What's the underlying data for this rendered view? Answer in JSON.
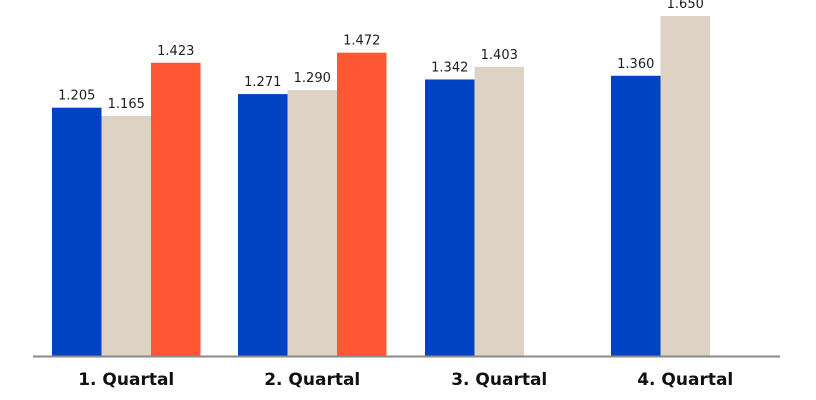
{
  "chart_data": {
    "type": "bar",
    "title": "",
    "xlabel": "",
    "ylabel": "",
    "categories": [
      "1. Quartal",
      "2. Quartal",
      "3. Quartal",
      "4. Quartal"
    ],
    "series": [
      {
        "color": "#0042c4",
        "values": [
          1205,
          1271,
          1342,
          1360
        ],
        "labels": [
          "1.205",
          "1.271",
          "1.342",
          "1.360"
        ]
      },
      {
        "color": "#ded2c5",
        "values": [
          1165,
          1290,
          1403,
          1650
        ],
        "labels": [
          "1.165",
          "1.290",
          "1.403",
          "1.650"
        ]
      },
      {
        "color": "#ff5733",
        "values": [
          1423,
          1472,
          null,
          null
        ],
        "labels": [
          "1.423",
          "1.472",
          null,
          null
        ]
      }
    ],
    "ylim": [
      0,
      1650
    ],
    "grid": false,
    "axis_color": "#8a8a8a"
  }
}
